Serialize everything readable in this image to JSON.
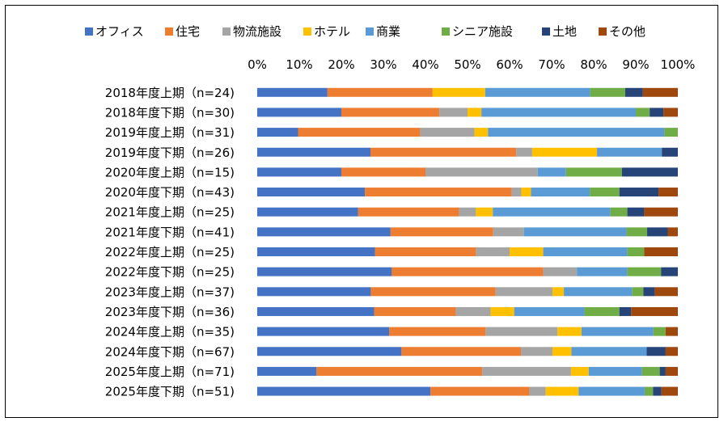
{
  "chart_data": {
    "type": "bar",
    "stacked": true,
    "percent": true,
    "orientation": "horizontal",
    "legend_position": "top",
    "grid": false,
    "xlim": [
      0,
      100
    ],
    "x_ticks": [
      "0%",
      "10%",
      "20%",
      "30%",
      "40%",
      "50%",
      "60%",
      "70%",
      "80%",
      "90%",
      "100%"
    ],
    "categories": [
      "2018年度上期（n=24)",
      "2018年度下期（n=30)",
      "2019年度上期（n=31)",
      "2019年度下期（n=26)",
      "2020年度上期（n=15)",
      "2020年度下期（n=43)",
      "2021年度上期（n=25)",
      "2021年度下期（n=41)",
      "2022年度上期（n=25)",
      "2022年度下期（n=25)",
      "2023年度上期（n=37)",
      "2023年度下期（n=36)",
      "2024年度上期（n=35)",
      "2024年度下期（n=67)",
      "2025年度上期（n=71)",
      "2025年度下期（n=51)"
    ],
    "series": [
      {
        "name": "オフィス",
        "color": "#4472C4",
        "values": [
          16.7,
          20.0,
          9.7,
          26.9,
          20.0,
          25.6,
          24.0,
          31.7,
          28.0,
          32.0,
          27.0,
          27.8,
          31.4,
          34.3,
          14.1,
          41.2
        ]
      },
      {
        "name": "住宅",
        "color": "#ED7D31",
        "values": [
          25.0,
          23.3,
          29.0,
          34.6,
          20.0,
          34.9,
          24.0,
          24.4,
          24.0,
          36.0,
          29.7,
          19.4,
          22.9,
          28.4,
          39.4,
          23.5
        ]
      },
      {
        "name": "物流施設",
        "color": "#A5A5A5",
        "values": [
          0,
          6.7,
          12.9,
          3.8,
          26.7,
          2.3,
          4.0,
          7.3,
          8.0,
          8.0,
          13.5,
          8.3,
          17.1,
          7.5,
          21.1,
          3.9
        ]
      },
      {
        "name": "ホテル",
        "color": "#FFC000",
        "values": [
          12.5,
          3.3,
          3.2,
          15.4,
          0,
          2.3,
          4.0,
          0,
          8.0,
          0,
          2.7,
          5.6,
          5.7,
          4.5,
          4.2,
          7.8
        ]
      },
      {
        "name": "商業",
        "color": "#5B9BD5",
        "values": [
          25.0,
          36.7,
          41.9,
          15.4,
          6.7,
          14.0,
          28.0,
          24.4,
          20.0,
          12.0,
          16.2,
          16.7,
          17.1,
          17.9,
          12.7,
          15.7
        ]
      },
      {
        "name": "シニア施設",
        "color": "#70AD47",
        "values": [
          8.3,
          3.3,
          3.2,
          0,
          13.3,
          7.0,
          4.0,
          4.9,
          4.0,
          8.0,
          2.7,
          8.3,
          2.9,
          0,
          4.2,
          2.0
        ]
      },
      {
        "name": "土地",
        "color": "#264478",
        "values": [
          4.2,
          3.3,
          0,
          3.8,
          13.3,
          9.3,
          4.0,
          4.9,
          0,
          4.0,
          2.7,
          2.8,
          0,
          4.5,
          1.4,
          2.0
        ]
      },
      {
        "name": "その他",
        "color": "#9E480E",
        "values": [
          8.3,
          3.4,
          0,
          0,
          0,
          4.6,
          8.0,
          2.4,
          8.0,
          0,
          5.5,
          11.1,
          2.9,
          2.9,
          2.9,
          3.9
        ]
      }
    ]
  }
}
